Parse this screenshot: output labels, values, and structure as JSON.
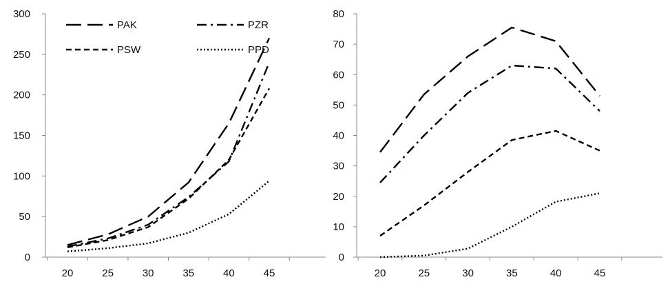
{
  "chart_data": [
    {
      "type": "line",
      "x": [
        20,
        25,
        30,
        35,
        40,
        45
      ],
      "ylim": [
        0,
        300
      ],
      "yticks": [
        0,
        50,
        100,
        150,
        200,
        250,
        300
      ],
      "grid": false,
      "legend_position": "top-left",
      "series": [
        {
          "name": "PAK",
          "values": [
            15,
            28,
            50,
            92,
            165,
            270
          ],
          "dash": "long-dash"
        },
        {
          "name": "PZR",
          "values": [
            13,
            23,
            40,
            74,
            118,
            240
          ],
          "dash": "dash-dot"
        },
        {
          "name": "PSW",
          "values": [
            12,
            21,
            37,
            72,
            120,
            208
          ],
          "dash": "short-dash"
        },
        {
          "name": "PPD",
          "values": [
            7,
            11,
            17,
            30,
            53,
            94
          ],
          "dash": "dotted"
        }
      ]
    },
    {
      "type": "line",
      "x": [
        20,
        25,
        30,
        35,
        40,
        45
      ],
      "ylim": [
        0,
        80
      ],
      "yticks": [
        0,
        10,
        20,
        30,
        40,
        50,
        60,
        70,
        80
      ],
      "grid": false,
      "series": [
        {
          "values": [
            34.5,
            53.5,
            66,
            75.5,
            71,
            53
          ],
          "dash": "long-dash"
        },
        {
          "values": [
            24.5,
            40,
            54,
            63,
            62,
            48
          ],
          "dash": "dash-dot"
        },
        {
          "values": [
            7,
            17,
            28,
            38.5,
            41.5,
            35
          ],
          "dash": "short-dash"
        },
        {
          "values": [
            0,
            0.5,
            2.8,
            10,
            18.2,
            21
          ],
          "dash": "dotted"
        }
      ]
    }
  ]
}
